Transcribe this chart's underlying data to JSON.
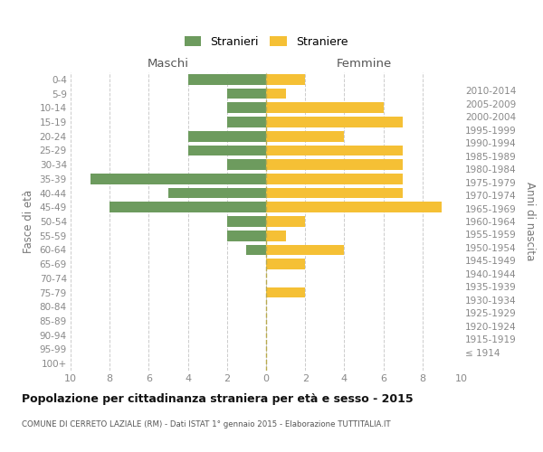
{
  "age_groups": [
    "100+",
    "95-99",
    "90-94",
    "85-89",
    "80-84",
    "75-79",
    "70-74",
    "65-69",
    "60-64",
    "55-59",
    "50-54",
    "45-49",
    "40-44",
    "35-39",
    "30-34",
    "25-29",
    "20-24",
    "15-19",
    "10-14",
    "5-9",
    "0-4"
  ],
  "birth_years": [
    "≤ 1914",
    "1915-1919",
    "1920-1924",
    "1925-1929",
    "1930-1934",
    "1935-1939",
    "1940-1944",
    "1945-1949",
    "1950-1954",
    "1955-1959",
    "1960-1964",
    "1965-1969",
    "1970-1974",
    "1975-1979",
    "1980-1984",
    "1985-1989",
    "1990-1994",
    "1995-1999",
    "2000-2004",
    "2005-2009",
    "2010-2014"
  ],
  "maschi": [
    0,
    0,
    0,
    0,
    0,
    0,
    0,
    0,
    1,
    2,
    2,
    8,
    5,
    9,
    2,
    4,
    4,
    2,
    2,
    2,
    4
  ],
  "femmine": [
    0,
    0,
    0,
    0,
    0,
    2,
    0,
    2,
    4,
    1,
    2,
    9,
    7,
    7,
    7,
    7,
    4,
    7,
    6,
    1,
    2
  ],
  "color_maschi": "#6d9b5e",
  "color_femmine": "#f5c035",
  "color_dashed_line": "#b8aa50",
  "background_color": "#ffffff",
  "grid_color": "#cccccc",
  "title": "Popolazione per cittadinanza straniera per età e sesso - 2015",
  "subtitle": "COMUNE DI CERRETO LAZIALE (RM) - Dati ISTAT 1° gennaio 2015 - Elaborazione TUTTITALIA.IT",
  "xlabel_left": "Maschi",
  "xlabel_right": "Femmine",
  "ylabel_left": "Fasce di età",
  "ylabel_right": "Anni di nascita",
  "legend_maschi": "Stranieri",
  "legend_femmine": "Straniere",
  "xlim": 10
}
